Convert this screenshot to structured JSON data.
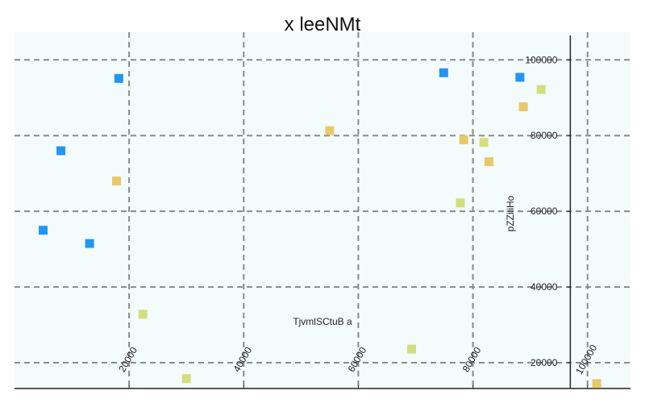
{
  "chart_data": {
    "type": "scatter",
    "title": "x leeNMt",
    "xlabel": "TjvmlSCtuB a",
    "ylabel": "pZZiliHo",
    "xlim": [
      0,
      107500
    ],
    "ylim": [
      13200,
      107300
    ],
    "x_ticks": [
      20000,
      40000,
      60000,
      80000,
      100000
    ],
    "y_ticks": [
      20000,
      40000,
      60000,
      80000,
      100000
    ],
    "x_tick_labels": [
      "20000",
      "40000",
      "60000",
      "80000",
      100000
    ],
    "y_tick_labels": [
      "20000",
      "40000",
      "60000",
      "80000",
      "100000"
    ],
    "x_axis_at_y": 13200,
    "y_axis_at_x": 97000,
    "grid": true,
    "legend": "none",
    "series": [
      {
        "color": "#2196f3",
        "points": [
          {
            "x": 18200,
            "y": 95100
          },
          {
            "x": 8100,
            "y": 76000
          },
          {
            "x": 5000,
            "y": 55000
          },
          {
            "x": 13100,
            "y": 51500
          },
          {
            "x": 74900,
            "y": 96600
          },
          {
            "x": 88200,
            "y": 95400
          }
        ]
      },
      {
        "color": "#e8c86a",
        "points": [
          {
            "x": 17800,
            "y": 68000
          },
          {
            "x": 55000,
            "y": 81300
          },
          {
            "x": 78400,
            "y": 78900
          },
          {
            "x": 82800,
            "y": 73100
          },
          {
            "x": 88800,
            "y": 87600
          },
          {
            "x": 101600,
            "y": 14500
          }
        ]
      },
      {
        "color": "#d4de7f",
        "points": [
          {
            "x": 91900,
            "y": 92200
          },
          {
            "x": 81900,
            "y": 78200
          },
          {
            "x": 77800,
            "y": 62200
          },
          {
            "x": 22400,
            "y": 32800
          },
          {
            "x": 30000,
            "y": 15800
          },
          {
            "x": 69300,
            "y": 23600
          }
        ]
      }
    ]
  }
}
